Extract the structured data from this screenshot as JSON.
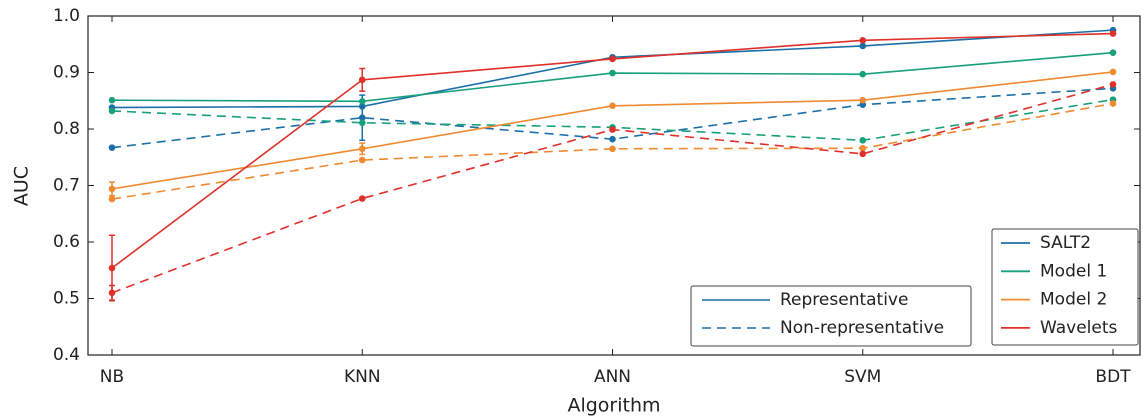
{
  "chart_data": {
    "type": "line",
    "x_label": "Algorithm",
    "y_label": "AUC",
    "categories": [
      "NB",
      "KNN",
      "ANN",
      "SVM",
      "BDT"
    ],
    "ylim": [
      0.4,
      1
    ],
    "yticks": [
      0.4,
      0.5,
      0.6,
      0.7,
      0.8,
      0.9,
      {
        "value": 1,
        "label": "1.0"
      }
    ],
    "groups": [
      {
        "name": "SALT2",
        "color": "#1b6fa8"
      },
      {
        "name": "Model 1",
        "color": "#17a07b"
      },
      {
        "name": "Model 2",
        "color": "#ef8a30"
      },
      {
        "name": "Wavelets",
        "color": "#e0302a"
      }
    ],
    "linestyles": [
      {
        "name": "Representative",
        "dash": "solid"
      },
      {
        "name": "Non-representative",
        "dash": "dashed"
      }
    ],
    "series": [
      {
        "group": 0,
        "linestyle": 0,
        "values": [
          0.838,
          0.84,
          0.927,
          0.947,
          0.975
        ],
        "errors": [
          null,
          null,
          null,
          null,
          null
        ]
      },
      {
        "group": 0,
        "linestyle": 1,
        "values": [
          0.767,
          0.82,
          0.782,
          0.843,
          0.872
        ],
        "errors": [
          null,
          0.04,
          null,
          null,
          null
        ]
      },
      {
        "group": 1,
        "linestyle": 0,
        "values": [
          0.851,
          0.849,
          0.899,
          0.897,
          0.935
        ],
        "errors": [
          null,
          null,
          null,
          null,
          null
        ]
      },
      {
        "group": 1,
        "linestyle": 1,
        "values": [
          0.832,
          0.811,
          0.803,
          0.78,
          0.852
        ],
        "errors": [
          null,
          null,
          null,
          null,
          null
        ]
      },
      {
        "group": 2,
        "linestyle": 0,
        "values": [
          0.694,
          0.765,
          0.841,
          0.851,
          0.901
        ],
        "errors": [
          0.012,
          0.01,
          null,
          null,
          null
        ]
      },
      {
        "group": 2,
        "linestyle": 1,
        "values": [
          0.676,
          0.745,
          0.765,
          0.766,
          0.845
        ],
        "errors": [
          null,
          null,
          null,
          null,
          null
        ]
      },
      {
        "group": 3,
        "linestyle": 0,
        "values": [
          0.554,
          0.887,
          0.924,
          0.957,
          0.969
        ],
        "errors": [
          0.058,
          0.02,
          null,
          null,
          null
        ]
      },
      {
        "group": 3,
        "linestyle": 1,
        "values": [
          0.51,
          0.677,
          0.799,
          0.756,
          0.879
        ],
        "errors": [
          0.013,
          null,
          null,
          null,
          null
        ]
      }
    ]
  }
}
